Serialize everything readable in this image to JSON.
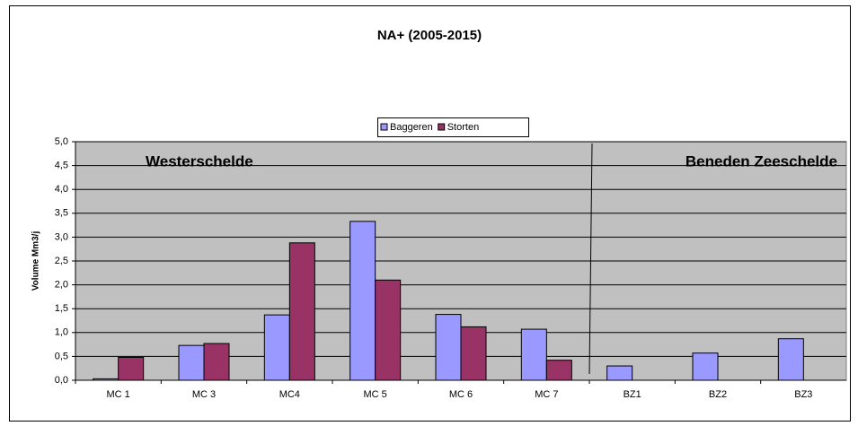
{
  "chart_data": {
    "type": "bar",
    "title": "NA+ (2005-2015)",
    "y_label": "Volume Mm3/j",
    "annotations": [
      "Westerschelde",
      "Beneden Zeeschelde"
    ],
    "categories": [
      "MC 1",
      "MC 3",
      "MC4",
      "MC 5",
      "MC 6",
      "MC 7",
      "BZ1",
      "BZ2",
      "BZ3"
    ],
    "series": [
      {
        "name": "Baggeren",
        "color": "#9999ff",
        "values": [
          0.03,
          0.73,
          1.37,
          3.33,
          1.38,
          1.07,
          0.3,
          0.57,
          0.87
        ]
      },
      {
        "name": "Storten",
        "color": "#993366",
        "values": [
          0.48,
          0.77,
          2.88,
          2.1,
          1.12,
          0.42,
          0,
          0,
          0
        ]
      }
    ],
    "ylim": [
      0,
      5
    ],
    "yticks": [
      {
        "value": 0,
        "label": "0,0"
      },
      {
        "value": 0.5,
        "label": "0,5"
      },
      {
        "value": 1,
        "label": "1,0"
      },
      {
        "value": 1.5,
        "label": "1,5"
      },
      {
        "value": 2,
        "label": "2,0"
      },
      {
        "value": 2.5,
        "label": "2,5"
      },
      {
        "value": 3,
        "label": "3,0"
      },
      {
        "value": 3.5,
        "label": "3,5"
      },
      {
        "value": 4,
        "label": "4,0"
      },
      {
        "value": 4.5,
        "label": "4,5"
      },
      {
        "value": 5,
        "label": "5,0"
      }
    ],
    "grid": true,
    "legend": "top"
  }
}
